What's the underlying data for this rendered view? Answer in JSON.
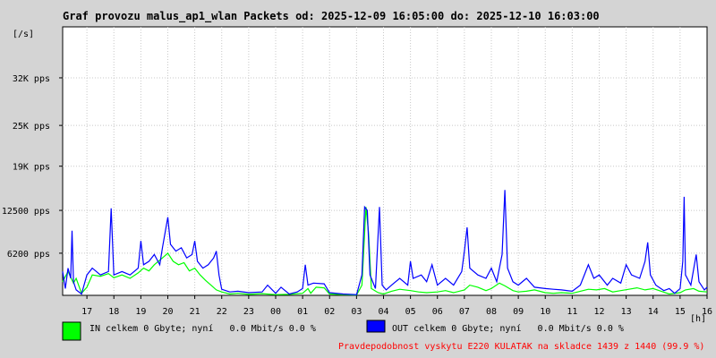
{
  "chart_data": {
    "type": "line",
    "title": "Graf provozu malus_ap1_wlan Packets od: 2025-12-09 16:05:00 do: 2025-12-10 16:03:00",
    "ylabel": "[/s]",
    "xlabel": "[h]",
    "ylim": [
      0,
      39500
    ],
    "y_ticks": [
      {
        "value": 6200,
        "label": "6200 pps"
      },
      {
        "value": 12500,
        "label": "12500 pps"
      },
      {
        "value": 19000,
        "label": "19K pps"
      },
      {
        "value": 25000,
        "label": "25K pps"
      },
      {
        "value": 32000,
        "label": "32K pps"
      }
    ],
    "x_start": 16.1,
    "x_end": 40.0,
    "x_ticks": [
      {
        "value": 17,
        "label": "17"
      },
      {
        "value": 18,
        "label": "18"
      },
      {
        "value": 19,
        "label": "19"
      },
      {
        "value": 20,
        "label": "20"
      },
      {
        "value": 21,
        "label": "21"
      },
      {
        "value": 22,
        "label": "22"
      },
      {
        "value": 23,
        "label": "23"
      },
      {
        "value": 24,
        "label": "00"
      },
      {
        "value": 25,
        "label": "01"
      },
      {
        "value": 26,
        "label": "02"
      },
      {
        "value": 27,
        "label": "03"
      },
      {
        "value": 28,
        "label": "04"
      },
      {
        "value": 29,
        "label": "05"
      },
      {
        "value": 30,
        "label": "06"
      },
      {
        "value": 31,
        "label": "07"
      },
      {
        "value": 32,
        "label": "08"
      },
      {
        "value": 33,
        "label": "09"
      },
      {
        "value": 34,
        "label": "10"
      },
      {
        "value": 35,
        "label": "11"
      },
      {
        "value": 36,
        "label": "12"
      },
      {
        "value": 37,
        "label": "13"
      },
      {
        "value": 38,
        "label": "14"
      },
      {
        "value": 39,
        "label": "15"
      },
      {
        "value": 40,
        "label": "16"
      }
    ],
    "grid": true,
    "series": [
      {
        "name": "IN",
        "color": "#00ff00",
        "points": [
          [
            16.1,
            2000
          ],
          [
            16.3,
            3500
          ],
          [
            16.5,
            1800
          ],
          [
            16.6,
            2500
          ],
          [
            16.8,
            300
          ],
          [
            17.0,
            1200
          ],
          [
            17.2,
            3000
          ],
          [
            17.5,
            2800
          ],
          [
            17.8,
            3200
          ],
          [
            18.0,
            2600
          ],
          [
            18.3,
            3000
          ],
          [
            18.6,
            2500
          ],
          [
            18.9,
            3300
          ],
          [
            19.1,
            4000
          ],
          [
            19.3,
            3600
          ],
          [
            19.5,
            4500
          ],
          [
            19.8,
            5500
          ],
          [
            20.0,
            6200
          ],
          [
            20.2,
            5000
          ],
          [
            20.4,
            4500
          ],
          [
            20.6,
            4800
          ],
          [
            20.8,
            3600
          ],
          [
            21.0,
            4000
          ],
          [
            21.2,
            3000
          ],
          [
            21.4,
            2200
          ],
          [
            21.6,
            1500
          ],
          [
            21.8,
            800
          ],
          [
            22.0,
            500
          ],
          [
            22.3,
            200
          ],
          [
            22.6,
            300
          ],
          [
            23.0,
            150
          ],
          [
            23.5,
            250
          ],
          [
            24.0,
            100
          ],
          [
            24.5,
            150
          ],
          [
            25.0,
            300
          ],
          [
            25.2,
            1000
          ],
          [
            25.3,
            300
          ],
          [
            25.5,
            1200
          ],
          [
            25.8,
            1100
          ],
          [
            26.0,
            200
          ],
          [
            26.5,
            100
          ],
          [
            27.0,
            50
          ],
          [
            27.2,
            1500
          ],
          [
            27.35,
            13000
          ],
          [
            27.45,
            9000
          ],
          [
            27.55,
            1000
          ],
          [
            27.8,
            400
          ],
          [
            28.0,
            200
          ],
          [
            28.3,
            600
          ],
          [
            28.6,
            900
          ],
          [
            29.0,
            700
          ],
          [
            29.3,
            500
          ],
          [
            29.6,
            400
          ],
          [
            30.0,
            500
          ],
          [
            30.3,
            700
          ],
          [
            30.6,
            400
          ],
          [
            31.0,
            800
          ],
          [
            31.2,
            1500
          ],
          [
            31.5,
            1200
          ],
          [
            31.8,
            700
          ],
          [
            32.0,
            1000
          ],
          [
            32.3,
            1800
          ],
          [
            32.5,
            1400
          ],
          [
            32.8,
            700
          ],
          [
            33.0,
            500
          ],
          [
            33.3,
            600
          ],
          [
            33.6,
            800
          ],
          [
            34.0,
            400
          ],
          [
            34.3,
            300
          ],
          [
            34.6,
            400
          ],
          [
            35.0,
            300
          ],
          [
            35.3,
            600
          ],
          [
            35.6,
            900
          ],
          [
            35.9,
            800
          ],
          [
            36.2,
            1000
          ],
          [
            36.5,
            500
          ],
          [
            36.8,
            700
          ],
          [
            37.1,
            900
          ],
          [
            37.4,
            1100
          ],
          [
            37.7,
            800
          ],
          [
            38.0,
            1000
          ],
          [
            38.3,
            600
          ],
          [
            38.6,
            200
          ],
          [
            39.0,
            400
          ],
          [
            39.2,
            800
          ],
          [
            39.5,
            1000
          ],
          [
            39.7,
            600
          ],
          [
            40.0,
            500
          ]
        ]
      },
      {
        "name": "OUT",
        "color": "#0000ff",
        "points": [
          [
            16.1,
            3500
          ],
          [
            16.2,
            1000
          ],
          [
            16.3,
            4000
          ],
          [
            16.4,
            2500
          ],
          [
            16.45,
            9500
          ],
          [
            16.5,
            2000
          ],
          [
            16.6,
            800
          ],
          [
            16.8,
            200
          ],
          [
            17.0,
            3000
          ],
          [
            17.2,
            4000
          ],
          [
            17.5,
            3000
          ],
          [
            17.8,
            3500
          ],
          [
            17.9,
            12800
          ],
          [
            18.0,
            3000
          ],
          [
            18.3,
            3500
          ],
          [
            18.6,
            3000
          ],
          [
            18.9,
            4000
          ],
          [
            19.0,
            8000
          ],
          [
            19.1,
            4500
          ],
          [
            19.3,
            5000
          ],
          [
            19.5,
            6000
          ],
          [
            19.7,
            4500
          ],
          [
            19.8,
            7000
          ],
          [
            20.0,
            11500
          ],
          [
            20.1,
            7500
          ],
          [
            20.3,
            6500
          ],
          [
            20.5,
            7000
          ],
          [
            20.7,
            5500
          ],
          [
            20.9,
            6000
          ],
          [
            21.0,
            8000
          ],
          [
            21.1,
            5000
          ],
          [
            21.3,
            4000
          ],
          [
            21.5,
            4500
          ],
          [
            21.7,
            5500
          ],
          [
            21.8,
            6500
          ],
          [
            21.9,
            3000
          ],
          [
            22.0,
            900
          ],
          [
            22.3,
            500
          ],
          [
            22.6,
            600
          ],
          [
            23.0,
            400
          ],
          [
            23.5,
            500
          ],
          [
            23.7,
            1500
          ],
          [
            24.0,
            300
          ],
          [
            24.2,
            1200
          ],
          [
            24.5,
            200
          ],
          [
            24.8,
            500
          ],
          [
            25.0,
            1000
          ],
          [
            25.1,
            4500
          ],
          [
            25.2,
            1500
          ],
          [
            25.4,
            1800
          ],
          [
            25.8,
            1700
          ],
          [
            26.0,
            400
          ],
          [
            26.5,
            200
          ],
          [
            27.0,
            100
          ],
          [
            27.2,
            3000
          ],
          [
            27.3,
            13000
          ],
          [
            27.4,
            12500
          ],
          [
            27.5,
            3000
          ],
          [
            27.7,
            1000
          ],
          [
            27.85,
            13000
          ],
          [
            27.95,
            1500
          ],
          [
            28.1,
            800
          ],
          [
            28.3,
            1500
          ],
          [
            28.6,
            2500
          ],
          [
            28.9,
            1500
          ],
          [
            29.0,
            5000
          ],
          [
            29.1,
            2500
          ],
          [
            29.4,
            3000
          ],
          [
            29.6,
            2000
          ],
          [
            29.8,
            4500
          ],
          [
            30.0,
            1500
          ],
          [
            30.3,
            2500
          ],
          [
            30.6,
            1500
          ],
          [
            30.9,
            3500
          ],
          [
            31.0,
            6500
          ],
          [
            31.1,
            10000
          ],
          [
            31.2,
            4000
          ],
          [
            31.5,
            3000
          ],
          [
            31.8,
            2500
          ],
          [
            32.0,
            4000
          ],
          [
            32.2,
            2000
          ],
          [
            32.4,
            6000
          ],
          [
            32.5,
            15500
          ],
          [
            32.6,
            4000
          ],
          [
            32.8,
            2000
          ],
          [
            33.0,
            1500
          ],
          [
            33.3,
            2500
          ],
          [
            33.6,
            1200
          ],
          [
            34.0,
            1000
          ],
          [
            34.3,
            900
          ],
          [
            34.6,
            800
          ],
          [
            35.0,
            600
          ],
          [
            35.3,
            1500
          ],
          [
            35.5,
            3500
          ],
          [
            35.6,
            4500
          ],
          [
            35.8,
            2500
          ],
          [
            36.0,
            3000
          ],
          [
            36.3,
            1500
          ],
          [
            36.5,
            2500
          ],
          [
            36.8,
            1800
          ],
          [
            37.0,
            4500
          ],
          [
            37.2,
            3000
          ],
          [
            37.5,
            2500
          ],
          [
            37.7,
            5000
          ],
          [
            37.8,
            7800
          ],
          [
            37.9,
            3000
          ],
          [
            38.1,
            1500
          ],
          [
            38.4,
            700
          ],
          [
            38.6,
            1000
          ],
          [
            38.8,
            300
          ],
          [
            39.0,
            1000
          ],
          [
            39.1,
            5000
          ],
          [
            39.15,
            14500
          ],
          [
            39.2,
            3000
          ],
          [
            39.4,
            1500
          ],
          [
            39.6,
            6000
          ],
          [
            39.7,
            2000
          ],
          [
            39.9,
            800
          ],
          [
            40.0,
            1200
          ]
        ]
      }
    ]
  },
  "legend": {
    "in_text": "IN celkem 0 Gbyte; nyní   0.0 Mbit/s 0.0 %",
    "out_text": "OUT celkem 0 Gbyte; nyní   0.0 Mbit/s 0.0 %",
    "in_color": "#00ff00",
    "out_color": "#0000ff"
  },
  "note": {
    "text": "Pravdepodobnost vyskytu E220 KULATAK na skladce 1439 z 1440 (99.9 %)",
    "color": "#ff0000"
  }
}
